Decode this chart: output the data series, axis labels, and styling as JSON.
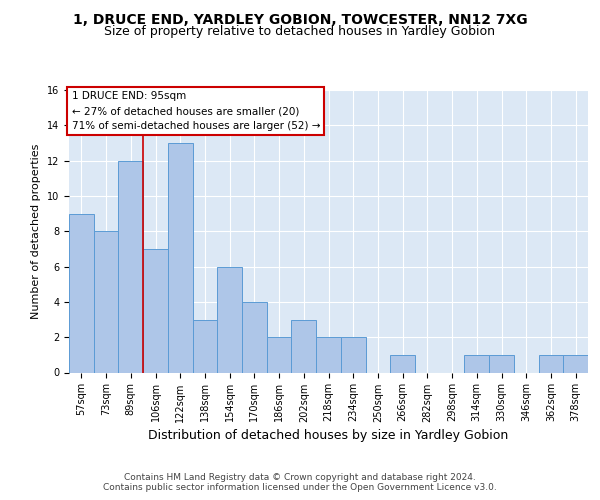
{
  "title": "1, DRUCE END, YARDLEY GOBION, TOWCESTER, NN12 7XG",
  "subtitle": "Size of property relative to detached houses in Yardley Gobion",
  "xlabel": "Distribution of detached houses by size in Yardley Gobion",
  "ylabel": "Number of detached properties",
  "bin_labels": [
    "57sqm",
    "73sqm",
    "89sqm",
    "106sqm",
    "122sqm",
    "138sqm",
    "154sqm",
    "170sqm",
    "186sqm",
    "202sqm",
    "218sqm",
    "234sqm",
    "250sqm",
    "266sqm",
    "282sqm",
    "298sqm",
    "314sqm",
    "330sqm",
    "346sqm",
    "362sqm",
    "378sqm"
  ],
  "bar_heights": [
    9,
    8,
    12,
    7,
    13,
    3,
    6,
    4,
    2,
    3,
    2,
    2,
    0,
    1,
    0,
    0,
    1,
    1,
    0,
    1,
    1
  ],
  "bar_color": "#aec6e8",
  "bar_edge_color": "#5b9bd5",
  "background_color": "#dce8f5",
  "grid_color": "white",
  "ylim": [
    0,
    16
  ],
  "yticks": [
    0,
    2,
    4,
    6,
    8,
    10,
    12,
    14,
    16
  ],
  "property_line_x": 2.5,
  "property_line_color": "#cc0000",
  "annotation_text": "1 DRUCE END: 95sqm\n← 27% of detached houses are smaller (20)\n71% of semi-detached houses are larger (52) →",
  "annotation_box_color": "white",
  "annotation_box_edge": "#cc0000",
  "footer": "Contains HM Land Registry data © Crown copyright and database right 2024.\nContains public sector information licensed under the Open Government Licence v3.0.",
  "title_fontsize": 10,
  "subtitle_fontsize": 9,
  "xlabel_fontsize": 9,
  "ylabel_fontsize": 8,
  "tick_fontsize": 7,
  "annotation_fontsize": 7.5,
  "footer_fontsize": 6.5
}
